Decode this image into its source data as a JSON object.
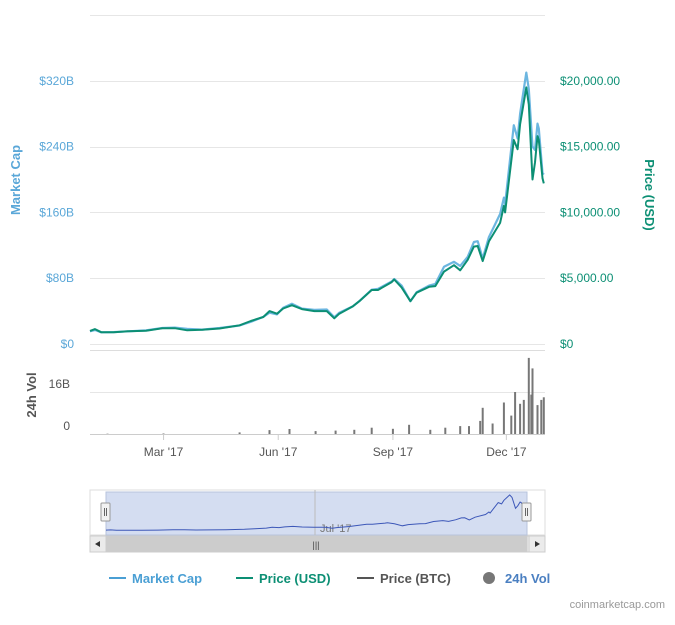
{
  "chart_data": {
    "type": "line",
    "source_credit": "coinmarketcap.com",
    "axes": {
      "left": {
        "title": "Market Cap",
        "ticks": [
          "$0",
          "$80B",
          "$160B",
          "$240B",
          "$320B"
        ],
        "tick_values": [
          0,
          80,
          160,
          240,
          320
        ],
        "range": [
          0,
          400
        ],
        "color": "#5aa7d8"
      },
      "right": {
        "title": "Price (USD)",
        "ticks": [
          "$0",
          "$5,000.00",
          "$10,000.00",
          "$15,000.00",
          "$20,000.00"
        ],
        "tick_values": [
          0,
          5000,
          10000,
          15000,
          20000
        ],
        "range": [
          0,
          25000
        ],
        "color": "#0c8f74"
      },
      "volume": {
        "title": "24h Vol",
        "ticks": [
          "0",
          "16B"
        ],
        "tick_values": [
          0,
          16
        ],
        "range": [
          0,
          32
        ]
      },
      "x": {
        "ticks": [
          "Mar '17",
          "Jun '17",
          "Sep '17",
          "Dec '17"
        ],
        "tick_dates": [
          "2017-03-01",
          "2017-06-01",
          "2017-09-01",
          "2017-12-01"
        ],
        "range": [
          "2017-01-01",
          "2018-01-01"
        ]
      }
    },
    "series": [
      {
        "name": "Market Cap",
        "color": "#6cb6e0",
        "unit": "B USD",
        "points": [
          [
            "2017-01-01",
            15.5
          ],
          [
            "2017-01-05",
            17
          ],
          [
            "2017-01-10",
            14.2
          ],
          [
            "2017-01-20",
            14.5
          ],
          [
            "2017-02-01",
            15.5
          ],
          [
            "2017-02-15",
            16.5
          ],
          [
            "2017-02-28",
            19.5
          ],
          [
            "2017-03-10",
            20
          ],
          [
            "2017-03-20",
            18.5
          ],
          [
            "2017-04-01",
            17.5
          ],
          [
            "2017-04-15",
            19.5
          ],
          [
            "2017-05-01",
            22.5
          ],
          [
            "2017-05-10",
            27
          ],
          [
            "2017-05-20",
            33
          ],
          [
            "2017-05-25",
            38
          ],
          [
            "2017-05-31",
            36
          ],
          [
            "2017-06-05",
            44
          ],
          [
            "2017-06-12",
            49
          ],
          [
            "2017-06-20",
            43
          ],
          [
            "2017-06-30",
            41.5
          ],
          [
            "2017-07-10",
            42
          ],
          [
            "2017-07-16",
            32.5
          ],
          [
            "2017-07-20",
            38
          ],
          [
            "2017-07-31",
            46
          ],
          [
            "2017-08-05",
            52
          ],
          [
            "2017-08-15",
            66
          ],
          [
            "2017-08-20",
            67
          ],
          [
            "2017-08-31",
            76
          ],
          [
            "2017-09-02",
            79
          ],
          [
            "2017-09-08",
            71
          ],
          [
            "2017-09-15",
            52
          ],
          [
            "2017-09-20",
            63
          ],
          [
            "2017-09-30",
            71
          ],
          [
            "2017-10-05",
            73
          ],
          [
            "2017-10-12",
            94
          ],
          [
            "2017-10-20",
            100
          ],
          [
            "2017-10-25",
            95
          ],
          [
            "2017-10-31",
            106
          ],
          [
            "2017-11-05",
            124
          ],
          [
            "2017-11-08",
            125
          ],
          [
            "2017-11-12",
            104
          ],
          [
            "2017-11-17",
            130
          ],
          [
            "2017-11-26",
            158
          ],
          [
            "2017-11-29",
            178
          ],
          [
            "2017-11-30",
            170
          ],
          [
            "2017-12-07",
            266
          ],
          [
            "2017-12-10",
            250
          ],
          [
            "2017-12-12",
            280
          ],
          [
            "2017-12-17",
            330
          ],
          [
            "2017-12-19",
            310
          ],
          [
            "2017-12-22",
            240
          ],
          [
            "2017-12-24",
            236
          ],
          [
            "2017-12-26",
            268
          ],
          [
            "2017-12-27",
            262
          ],
          [
            "2017-12-30",
            208
          ],
          [
            "2017-12-31",
            206
          ]
        ]
      },
      {
        "name": "Price (USD)",
        "color": "#0c8f74",
        "unit": "USD",
        "points": [
          [
            "2017-01-01",
            998
          ],
          [
            "2017-01-05",
            1130
          ],
          [
            "2017-01-10",
            900
          ],
          [
            "2017-01-20",
            895
          ],
          [
            "2017-02-01",
            970
          ],
          [
            "2017-02-15",
            1010
          ],
          [
            "2017-02-28",
            1190
          ],
          [
            "2017-03-10",
            1200
          ],
          [
            "2017-03-20",
            1040
          ],
          [
            "2017-04-01",
            1080
          ],
          [
            "2017-04-15",
            1180
          ],
          [
            "2017-05-01",
            1420
          ],
          [
            "2017-05-10",
            1750
          ],
          [
            "2017-05-20",
            2050
          ],
          [
            "2017-05-25",
            2500
          ],
          [
            "2017-05-31",
            2300
          ],
          [
            "2017-06-05",
            2700
          ],
          [
            "2017-06-12",
            2950
          ],
          [
            "2017-06-20",
            2650
          ],
          [
            "2017-06-30",
            2500
          ],
          [
            "2017-07-10",
            2500
          ],
          [
            "2017-07-16",
            1950
          ],
          [
            "2017-07-20",
            2300
          ],
          [
            "2017-07-31",
            2870
          ],
          [
            "2017-08-05",
            3250
          ],
          [
            "2017-08-15",
            4100
          ],
          [
            "2017-08-20",
            4100
          ],
          [
            "2017-08-31",
            4700
          ],
          [
            "2017-09-02",
            4900
          ],
          [
            "2017-09-08",
            4300
          ],
          [
            "2017-09-15",
            3250
          ],
          [
            "2017-09-20",
            3900
          ],
          [
            "2017-09-30",
            4350
          ],
          [
            "2017-10-05",
            4400
          ],
          [
            "2017-10-12",
            5500
          ],
          [
            "2017-10-20",
            5990
          ],
          [
            "2017-10-25",
            5600
          ],
          [
            "2017-10-31",
            6400
          ],
          [
            "2017-11-05",
            7400
          ],
          [
            "2017-11-08",
            7450
          ],
          [
            "2017-11-12",
            6300
          ],
          [
            "2017-11-17",
            7800
          ],
          [
            "2017-11-26",
            9200
          ],
          [
            "2017-11-29",
            10500
          ],
          [
            "2017-11-30",
            10000
          ],
          [
            "2017-12-07",
            15500
          ],
          [
            "2017-12-10",
            14800
          ],
          [
            "2017-12-12",
            16700
          ],
          [
            "2017-12-17",
            19500
          ],
          [
            "2017-12-19",
            18200
          ],
          [
            "2017-12-22",
            12500
          ],
          [
            "2017-12-24",
            13800
          ],
          [
            "2017-12-26",
            15800
          ],
          [
            "2017-12-27",
            15500
          ],
          [
            "2017-12-30",
            12600
          ],
          [
            "2017-12-31",
            12200
          ]
        ]
      },
      {
        "name": "24h Vol",
        "type": "bar",
        "color": "#777777",
        "unit": "B USD",
        "points": [
          [
            "2017-01-15",
            0.1
          ],
          [
            "2017-03-01",
            0.2
          ],
          [
            "2017-05-01",
            0.6
          ],
          [
            "2017-05-25",
            1.5
          ],
          [
            "2017-06-10",
            1.9
          ],
          [
            "2017-07-01",
            1.1
          ],
          [
            "2017-07-17",
            1.3
          ],
          [
            "2017-08-01",
            1.6
          ],
          [
            "2017-08-15",
            2.4
          ],
          [
            "2017-09-01",
            2.0
          ],
          [
            "2017-09-14",
            3.5
          ],
          [
            "2017-10-01",
            1.6
          ],
          [
            "2017-10-13",
            2.4
          ],
          [
            "2017-10-25",
            3.0
          ],
          [
            "2017-11-01",
            3.0
          ],
          [
            "2017-11-10",
            5.0
          ],
          [
            "2017-11-12",
            10.0
          ],
          [
            "2017-11-20",
            4.0
          ],
          [
            "2017-11-29",
            12.0
          ],
          [
            "2017-12-05",
            7.0
          ],
          [
            "2017-12-08",
            16.0
          ],
          [
            "2017-12-12",
            11.5
          ],
          [
            "2017-12-15",
            13.0
          ],
          [
            "2017-12-19",
            29.0
          ],
          [
            "2017-12-21",
            15.0
          ],
          [
            "2017-12-22",
            25.0
          ],
          [
            "2017-12-26",
            11.0
          ],
          [
            "2017-12-29",
            13.0
          ],
          [
            "2017-12-31",
            14.0
          ]
        ]
      }
    ],
    "navigator": {
      "label": "Jul '17",
      "handle": "|||"
    },
    "legend": {
      "placement": "bottom",
      "items": [
        {
          "label": "Market Cap",
          "color": "#4a9fd4",
          "marker": "line"
        },
        {
          "label": "Price (USD)",
          "color": "#0c8f74",
          "marker": "line"
        },
        {
          "label": "Price (BTC)",
          "color": "#555555",
          "marker": "line"
        },
        {
          "label": "24h Vol",
          "color": "#777777",
          "marker": "circle"
        }
      ]
    }
  }
}
